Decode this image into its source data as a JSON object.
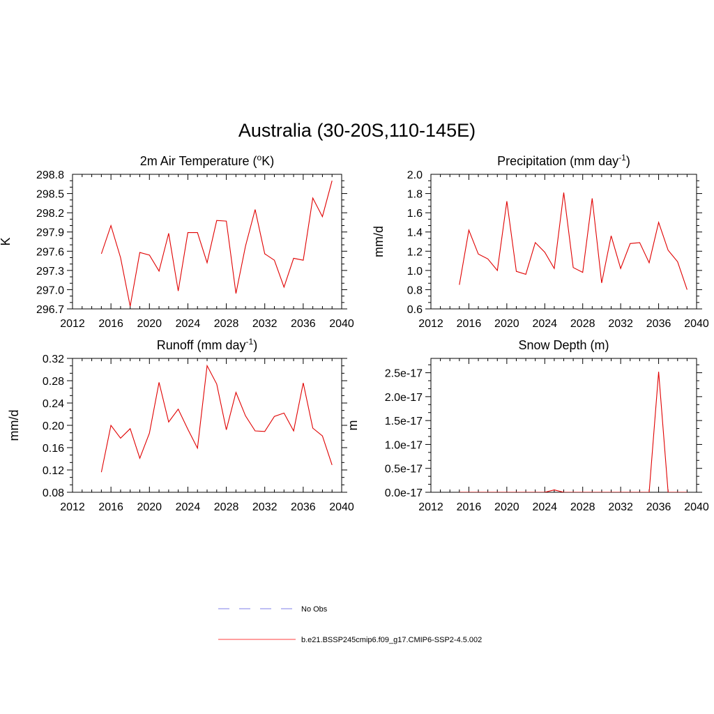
{
  "figure": {
    "title": "Australia (30-20S,110-145E)"
  },
  "legend": {
    "entries": [
      {
        "label": "No Obs",
        "color": "#9999ee",
        "style": "dashed"
      },
      {
        "label": "b.e21.BSSP245cmip6.f09_g17.CMIP6-SSP2-4.5.002",
        "color": "#ff6666",
        "style": "solid"
      }
    ]
  },
  "chart_data": [
    {
      "type": "line",
      "title": "2m Air Temperature (",
      "title_sup": "o",
      "title_after": "K)",
      "ylabel": "K",
      "xlim": [
        2012,
        2040
      ],
      "ylim": [
        296.7,
        298.8
      ],
      "xticks": [
        2012,
        2016,
        2020,
        2024,
        2028,
        2032,
        2036,
        2040
      ],
      "yticks": [
        "296.7",
        "297.0",
        "297.3",
        "297.6",
        "297.9",
        "298.2",
        "298.5",
        "298.8"
      ],
      "series": [
        {
          "color": "#e00000",
          "x": [
            2015,
            2016,
            2017,
            2018,
            2019,
            2020,
            2021,
            2022,
            2023,
            2024,
            2025,
            2026,
            2027,
            2028,
            2029,
            2030,
            2031,
            2032,
            2033,
            2034,
            2035,
            2036,
            2037,
            2038,
            2039
          ],
          "y": [
            297.56,
            298.0,
            297.5,
            296.74,
            297.58,
            297.54,
            297.29,
            297.88,
            296.98,
            297.89,
            297.89,
            297.42,
            298.08,
            298.07,
            296.94,
            297.68,
            298.25,
            297.56,
            297.46,
            297.04,
            297.49,
            297.46,
            298.43,
            298.14,
            298.7
          ]
        }
      ]
    },
    {
      "type": "line",
      "title": "Precipitation (mm day",
      "title_sup": "-1",
      "title_after": ")",
      "ylabel": "mm/d",
      "xlim": [
        2012,
        2040
      ],
      "ylim": [
        0.6,
        2.0
      ],
      "xticks": [
        2012,
        2016,
        2020,
        2024,
        2028,
        2032,
        2036,
        2040
      ],
      "yticks": [
        "0.6",
        "0.8",
        "1.0",
        "1.2",
        "1.4",
        "1.6",
        "1.8",
        "2.0"
      ],
      "series": [
        {
          "color": "#e00000",
          "x": [
            2015,
            2016,
            2017,
            2018,
            2019,
            2020,
            2021,
            2022,
            2023,
            2024,
            2025,
            2026,
            2027,
            2028,
            2029,
            2030,
            2031,
            2032,
            2033,
            2034,
            2035,
            2036,
            2037,
            2038,
            2039
          ],
          "y": [
            0.85,
            1.42,
            1.17,
            1.12,
            1.0,
            1.72,
            0.99,
            0.96,
            1.29,
            1.19,
            1.02,
            1.81,
            1.03,
            0.98,
            1.75,
            0.87,
            1.36,
            1.02,
            1.28,
            1.29,
            1.08,
            1.5,
            1.21,
            1.09,
            0.8
          ]
        }
      ]
    },
    {
      "type": "line",
      "title": "Runoff (mm day",
      "title_sup": "-1",
      "title_after": ")",
      "ylabel": "mm/d",
      "xlim": [
        2012,
        2040
      ],
      "ylim": [
        0.08,
        0.32
      ],
      "xticks": [
        2012,
        2016,
        2020,
        2024,
        2028,
        2032,
        2036,
        2040
      ],
      "yticks": [
        "0.08",
        "0.12",
        "0.16",
        "0.20",
        "0.24",
        "0.28",
        "0.32"
      ],
      "series": [
        {
          "color": "#e00000",
          "x": [
            2015,
            2016,
            2017,
            2018,
            2019,
            2020,
            2021,
            2022,
            2023,
            2024,
            2025,
            2026,
            2027,
            2028,
            2029,
            2030,
            2031,
            2032,
            2033,
            2034,
            2035,
            2036,
            2037,
            2038,
            2039
          ],
          "y": [
            0.116,
            0.2,
            0.177,
            0.194,
            0.141,
            0.186,
            0.277,
            0.206,
            0.229,
            0.193,
            0.159,
            0.307,
            0.274,
            0.192,
            0.259,
            0.217,
            0.19,
            0.189,
            0.216,
            0.222,
            0.19,
            0.276,
            0.195,
            0.181,
            0.129
          ]
        }
      ]
    },
    {
      "type": "line",
      "title": "Snow Depth (m)",
      "title_sup": "",
      "title_after": "",
      "ylabel": "m",
      "xlim": [
        2012,
        2040
      ],
      "ylim": [
        0,
        2.8e-17
      ],
      "xticks": [
        2012,
        2016,
        2020,
        2024,
        2028,
        2032,
        2036,
        2040
      ],
      "yticks": [
        "0.0e-17",
        "0.5e-17",
        "1.0e-17",
        "1.5e-17",
        "2.0e-17",
        "2.5e-17"
      ],
      "ytick_values": [
        0,
        5e-18,
        1e-17,
        1.5e-17,
        2e-17,
        2.5e-17
      ],
      "series": [
        {
          "color": "#e00000",
          "x": [
            2015,
            2016,
            2017,
            2018,
            2019,
            2020,
            2021,
            2022,
            2023,
            2024,
            2025,
            2026,
            2027,
            2028,
            2029,
            2030,
            2031,
            2032,
            2033,
            2034,
            2035,
            2036,
            2037,
            2038,
            2039
          ],
          "y": [
            0,
            0,
            0,
            0,
            0,
            0,
            0,
            0,
            0,
            0,
            5e-19,
            0,
            0,
            0,
            0,
            0,
            0,
            0,
            0,
            0,
            0,
            2.52e-17,
            0,
            0,
            0
          ]
        }
      ]
    }
  ]
}
